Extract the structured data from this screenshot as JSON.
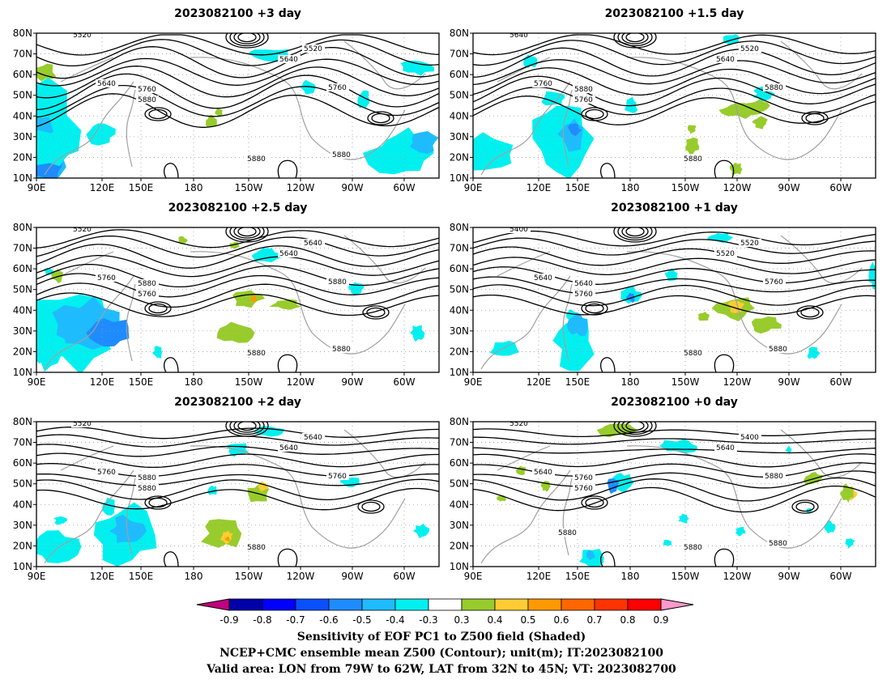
{
  "panels": [
    {
      "title": "2023082100 +3 day",
      "contour_labels": [
        "5520",
        "5640",
        "5520",
        "5640",
        "5760",
        "5880",
        "5760",
        "5880",
        "5880"
      ]
    },
    {
      "title": "2023082100 +1.5 day",
      "contour_labels": [
        "5640",
        "5640",
        "5520",
        "5760",
        "5880",
        "5760",
        "5880",
        "5880"
      ]
    },
    {
      "title": "2023082100 +2.5 day",
      "contour_labels": [
        "5520",
        "5640",
        "5640",
        "5760",
        "5880",
        "5760",
        "5880",
        "5880",
        "5880"
      ]
    },
    {
      "title": "2023082100 +1 day",
      "contour_labels": [
        "5400",
        "5520",
        "5520",
        "5640",
        "5640",
        "5760",
        "5760",
        "5880",
        "5880"
      ]
    },
    {
      "title": "2023082100 +2 day",
      "contour_labels": [
        "5520",
        "5640",
        "5640",
        "5760",
        "5880",
        "5880",
        "5760",
        "5880"
      ]
    },
    {
      "title": "2023082100 +0 day",
      "contour_labels": [
        "5520",
        "5640",
        "5400",
        "5640",
        "5760",
        "5760",
        "5880",
        "5880",
        "5880",
        "5880"
      ]
    }
  ],
  "lat_labels": [
    "80N",
    "70N",
    "60N",
    "50N",
    "40N",
    "30N",
    "20N",
    "10N"
  ],
  "lon_labels": [
    "90E",
    "120E",
    "150E",
    "180",
    "150W",
    "120W",
    "90W",
    "60W"
  ],
  "colorbar": {
    "labels": [
      "-0.9",
      "-0.8",
      "-0.7",
      "-0.6",
      "-0.5",
      "-0.4",
      "-0.3",
      "0.3",
      "0.4",
      "0.5",
      "0.6",
      "0.7",
      "0.8",
      "0.9"
    ],
    "colors": [
      "#c1007f",
      "#0000a8",
      "#0000ff",
      "#0a50ff",
      "#1e8cff",
      "#1ebcff",
      "#00f0f0",
      "#ffffff",
      "#98cc2c",
      "#ffcc33",
      "#ff9900",
      "#ff6600",
      "#ff3300",
      "#ff0000",
      "#ff99cc"
    ]
  },
  "caption": {
    "line1": "Sensitivity of EOF PC1 to Z500 field (Shaded)",
    "line2": "NCEP+CMC ensemble mean Z500 (Contour); unit(m); IT:2023082100",
    "line3": "Valid area: LON from 79W to 62W, LAT from 32N to 45N; VT: 2023082700"
  },
  "colors": {
    "contour": "#000000",
    "coast": "#a0a0a0",
    "grid": "#9a9a9a"
  }
}
